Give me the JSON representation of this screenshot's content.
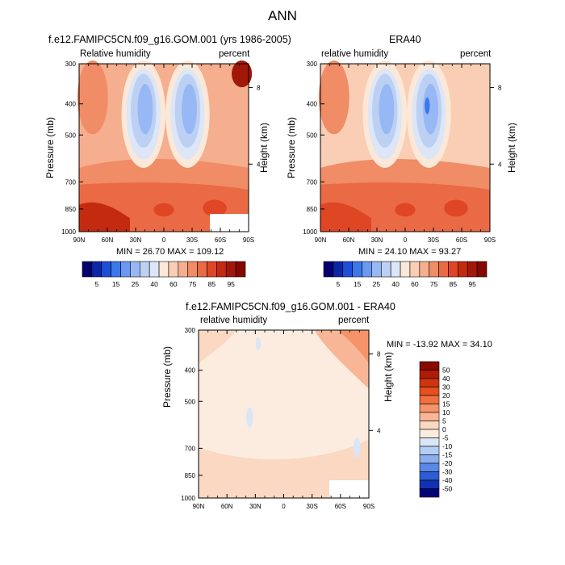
{
  "main_title": "ANN",
  "chart_data": [
    {
      "type": "heatmap",
      "title": "f.e12.FAMIPC5CN.f09_g16.GOM.001 (yrs 1986-2005)",
      "left_subtitle": "Relative humidity",
      "right_subtitle": "percent",
      "ylabel": "Pressure (mb)",
      "ylabel_right": "Height (km)",
      "x_ticks": [
        "90N",
        "60N",
        "30N",
        "0",
        "30S",
        "60S",
        "90S"
      ],
      "y_ticks": [
        "300",
        "400",
        "500",
        "700",
        "850",
        "1000"
      ],
      "y_ticks_right": [
        "8",
        "4"
      ],
      "ylim": [
        1000,
        300
      ],
      "min_max_text": "MIN = 26.70  MAX = 109.12",
      "colorbar_orientation": "horizontal",
      "colorbar_labels": [
        "5",
        "15",
        "25",
        "40",
        "60",
        "75",
        "85",
        "95"
      ],
      "colorbar_colors": [
        "#05006e",
        "#0c26a8",
        "#1e4ed8",
        "#3a78ec",
        "#6a98f2",
        "#97b8f4",
        "#bcd0f4",
        "#dce6f6",
        "#fbe8d8",
        "#f9ceb4",
        "#f5ae8e",
        "#f08c66",
        "#ea6a45",
        "#df4624",
        "#c42a10",
        "#a21808",
        "#840800"
      ]
    },
    {
      "type": "heatmap",
      "title": "ERA40",
      "left_subtitle": "relative humidity",
      "right_subtitle": "percent",
      "ylabel": "Pressure (mb)",
      "ylabel_right": "Height (km)",
      "x_ticks": [
        "90N",
        "60N",
        "30N",
        "0",
        "30S",
        "60S",
        "90S"
      ],
      "y_ticks": [
        "300",
        "400",
        "500",
        "700",
        "850",
        "1000"
      ],
      "y_ticks_right": [
        "8",
        "4"
      ],
      "ylim": [
        1000,
        300
      ],
      "min_max_text": "MIN = 24.10  MAX = 93.27",
      "colorbar_orientation": "horizontal",
      "colorbar_labels": [
        "5",
        "15",
        "25",
        "40",
        "60",
        "75",
        "85",
        "95"
      ],
      "colorbar_colors": [
        "#05006e",
        "#0c26a8",
        "#1e4ed8",
        "#3a78ec",
        "#6a98f2",
        "#97b8f4",
        "#bcd0f4",
        "#dce6f6",
        "#fbe8d8",
        "#f9ceb4",
        "#f5ae8e",
        "#f08c66",
        "#ea6a45",
        "#df4624",
        "#c42a10",
        "#a21808",
        "#840800"
      ]
    },
    {
      "type": "heatmap",
      "title": "f.e12.FAMIPC5CN.f09_g16.GOM.001 - ERA40",
      "left_subtitle": "relative humidity",
      "right_subtitle": "percent",
      "ylabel": "Pressure (mb)",
      "ylabel_right": "Height (km)",
      "x_ticks": [
        "90N",
        "60N",
        "30N",
        "0",
        "30S",
        "60S",
        "90S"
      ],
      "y_ticks": [
        "300",
        "400",
        "500",
        "700",
        "850",
        "1000"
      ],
      "y_ticks_right": [
        "8",
        "4"
      ],
      "ylim": [
        1000,
        300
      ],
      "min_max_text": "MIN = -13.92  MAX =  34.10",
      "colorbar_orientation": "vertical",
      "colorbar_labels": [
        "50",
        "40",
        "30",
        "20",
        "15",
        "10",
        "5",
        "0",
        "-5",
        "-10",
        "-15",
        "-20",
        "-30",
        "-40",
        "-50"
      ],
      "colorbar_colors": [
        "#8a0a00",
        "#b01c06",
        "#d0340e",
        "#e64f20",
        "#f07040",
        "#f5946a",
        "#f8b696",
        "#fad8c2",
        "#fcece0",
        "#dae6f6",
        "#b4cdf2",
        "#8aaeee",
        "#5a88e6",
        "#2e5cd6",
        "#1232b2",
        "#02037a"
      ]
    }
  ]
}
